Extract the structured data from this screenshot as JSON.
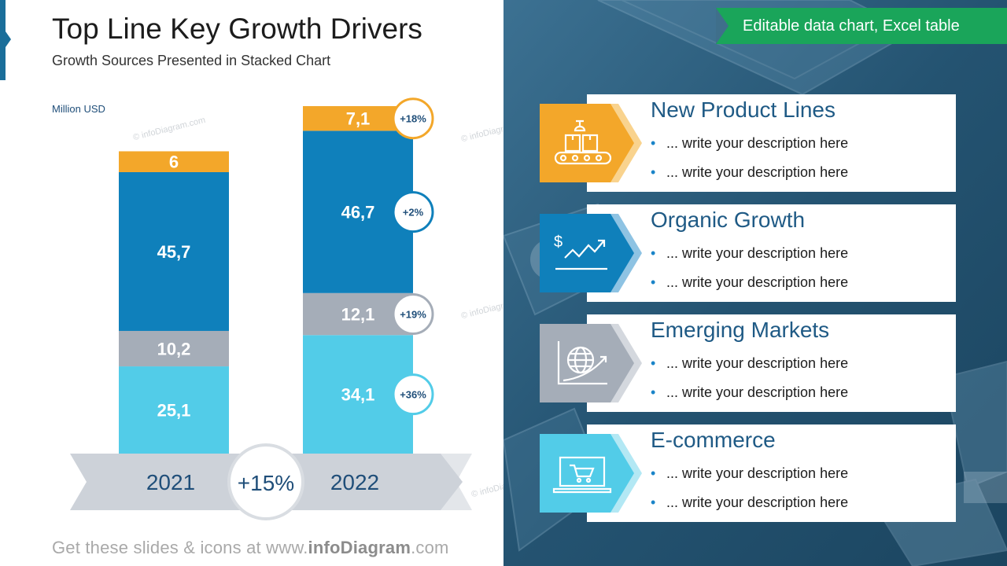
{
  "header": {
    "title": "Top Line Key Growth Drivers",
    "subtitle": "Growth Sources Presented in Stacked Chart",
    "unit": "Million USD"
  },
  "watermark": "© infoDiagram.com",
  "badge": "Editable data chart, Excel table",
  "footer": {
    "prefix": "Get these slides & icons at www.",
    "brand": "infoDiagram",
    "suffix": ".com"
  },
  "colors": {
    "orange": "#f3a72a",
    "blue": "#0f80bb",
    "gray": "#a5adb8",
    "cyan": "#52cce8",
    "title_blue": "#1f5a85"
  },
  "chart_data": {
    "type": "bar",
    "stacked": true,
    "categories": [
      "2021",
      "2022"
    ],
    "series": [
      {
        "name": "E-commerce",
        "color": "#52cce8",
        "values": [
          25.1,
          34.1
        ],
        "labels": [
          "25,1",
          "34,1"
        ],
        "change": [
          null,
          "+36%"
        ]
      },
      {
        "name": "Emerging Markets",
        "color": "#a5adb8",
        "values": [
          10.2,
          12.1
        ],
        "labels": [
          "10,2",
          "12,1"
        ],
        "change": [
          null,
          "+19%"
        ]
      },
      {
        "name": "Organic Growth",
        "color": "#0f80bb",
        "values": [
          45.7,
          46.7
        ],
        "labels": [
          "45,7",
          "46,7"
        ],
        "change": [
          null,
          "+2%"
        ]
      },
      {
        "name": "New Product Lines",
        "color": "#f3a72a",
        "values": [
          6,
          7.1
        ],
        "labels": [
          "6",
          "7,1"
        ],
        "change": [
          null,
          "+18%"
        ]
      }
    ],
    "total_change": "+15%",
    "ylabel": "Million USD"
  },
  "drivers": [
    {
      "title": "New Product Lines",
      "icon": "conveyor-belt-icon",
      "color": "#f3a72a",
      "bullets": [
        "... write your description here",
        "... write your description here"
      ]
    },
    {
      "title": "Organic Growth",
      "icon": "dollar-growth-chart-icon",
      "color": "#0f80bb",
      "bullets": [
        "... write your description here",
        "... write your description here"
      ]
    },
    {
      "title": "Emerging Markets",
      "icon": "globe-growth-icon",
      "color": "#a5adb8",
      "bullets": [
        "... write your description here",
        "... write your description here"
      ]
    },
    {
      "title": "E-commerce",
      "icon": "laptop-cart-icon",
      "color": "#52cce8",
      "bullets": [
        "... write your description here",
        "... write your description here"
      ]
    }
  ]
}
